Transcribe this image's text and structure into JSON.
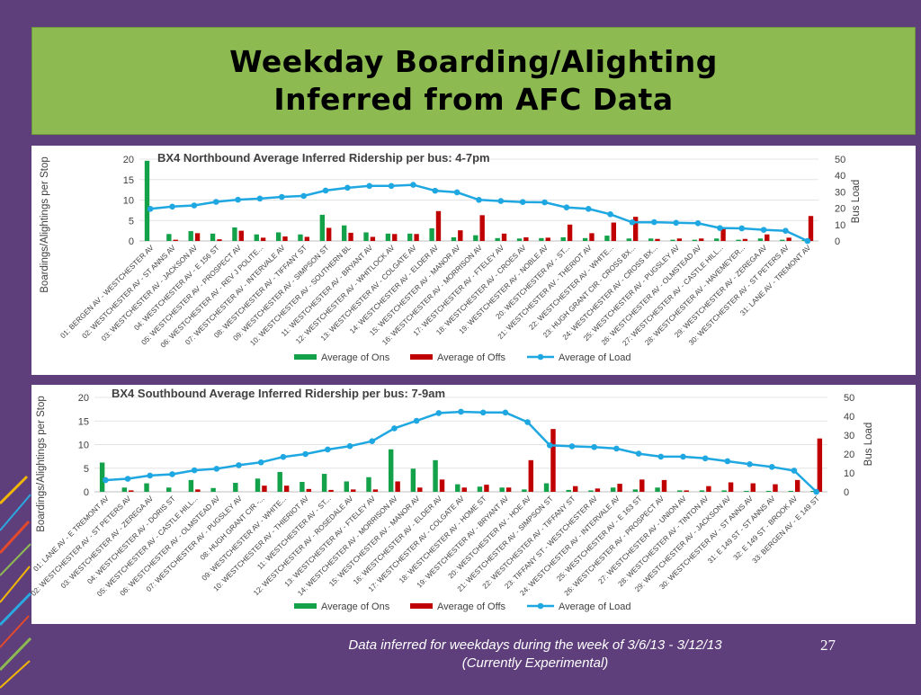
{
  "slide": {
    "title_lines": [
      "Weekday Boarding/Alighting",
      "Inferred from AFC Data"
    ],
    "footer_lines": [
      "Data inferred for weekdays during the week of 3/6/13 - 3/12/13",
      "(Currently Experimental)"
    ],
    "page_number": "27"
  },
  "colors": {
    "ons": "#13a14a",
    "offs": "#c00000",
    "load": "#1ea7e1",
    "background": "#5e3f7c",
    "title_box": "#8dbb52"
  },
  "chart_data": [
    {
      "type": "bar",
      "title": "BX4 Northbound Average Inferred Ridership per bus: 4-7pm",
      "ylabel": "Boardings/Alightings per Stop",
      "y2label": "Bus Load",
      "ylim": [
        0,
        20
      ],
      "y2lim": [
        0,
        50
      ],
      "yticks": [
        0,
        5,
        10,
        15,
        20
      ],
      "y2ticks": [
        0,
        10,
        20,
        30,
        40,
        50
      ],
      "legend": "bottom",
      "categories": [
        "01: BERGEN AV - WESTCHESTER AV",
        "02: WESTCHESTER AV - ST ANNS AV",
        "03: WESTCHESTER AV - JACKSON AV",
        "04: WESTCHESTER AV - E 156 ST",
        "05: WESTCHESTER AV - PROSPECT AV",
        "06: WESTCHESTER AV - REV J POLITE...",
        "07: WESTCHESTER AV - INTERVALE AV",
        "08: WESTCHESTER AV - TIFFANY ST",
        "09: WESTCHESTER AV - SIMPSON ST",
        "10: WESTCHESTER AV - SOUTHERN BL",
        "11: WESTCHESTER AV - BRYANT AV",
        "12: WESTCHESTER AV - WHITLOCK AV",
        "13: WESTCHESTER AV - COLGATE AV",
        "14: WESTCHESTER AV - ELDER AV",
        "15: WESTCHESTER AV - MANOR AV",
        "16: WESTCHESTER AV - MORRISON AV",
        "17: WESTCHESTER AV - FTELEY AV",
        "18: WESTCHESTER AV - CROES AV",
        "19: WESTCHESTER AV - NOBLE AV",
        "20: WESTCHESTER AV - ST...",
        "21: WESTCHESTER AV - THERIOT AV",
        "22: WESTCHESTER AV - WHITE...",
        "23: HUGH GRANT CIR - CROSS BX...",
        "24: WESTCHESTER AV - CROSS BX...",
        "25: WESTCHESTER AV - PUGSLEY AV",
        "26: WESTCHESTER AV - OLMSTEAD AV",
        "27: WESTCHESTER AV - CASTLE HILL...",
        "28: WESTCHESTER AV - HAVEMEYER...",
        "29: WESTCHESTER AV - ZEREGA AV",
        "30: WESTCHESTER AV - ST PETERS AV",
        "31: LANE AV - TREMONT AV"
      ],
      "series": [
        {
          "name": "Average of Ons",
          "kind": "bar",
          "axis": "left",
          "values": [
            19.6,
            1.7,
            2.4,
            1.8,
            3.3,
            1.6,
            2.1,
            1.6,
            6.4,
            3.8,
            2.1,
            1.8,
            1.8,
            3.1,
            0.9,
            1.4,
            0.7,
            0.6,
            0.7,
            0.9,
            0.7,
            1.3,
            0.6,
            0.6,
            0.3,
            0.3,
            0.6,
            0.3,
            0.6,
            0.3,
            0.2
          ]
        },
        {
          "name": "Average of Offs",
          "kind": "bar",
          "axis": "left",
          "values": [
            0,
            0.3,
            1.9,
            0.4,
            2.5,
            0.8,
            1.1,
            1.0,
            3.2,
            2.0,
            1.0,
            1.7,
            1.7,
            7.3,
            2.6,
            6.3,
            1.8,
            0.9,
            0.8,
            4.0,
            1.9,
            4.5,
            5.9,
            0.5,
            0.6,
            0.6,
            3.3,
            0.5,
            1.6,
            0.8,
            6.1
          ]
        },
        {
          "name": "Average of Load",
          "kind": "line",
          "axis": "right",
          "values": [
            19.6,
            21,
            21.7,
            23.9,
            25.2,
            25.9,
            26.9,
            27.5,
            30.8,
            32.5,
            33.6,
            33.6,
            34.3,
            30.7,
            29.7,
            25.1,
            24.4,
            23.8,
            23.6,
            20.5,
            19.6,
            16.3,
            11.4,
            11.5,
            11.1,
            10.8,
            7.9,
            7.7,
            6.8,
            6.2,
            0
          ]
        }
      ]
    },
    {
      "type": "bar",
      "title": "BX4 Southbound Average Inferred Ridership per bus: 7-9am",
      "ylabel": "Boardings/Alightings per Stop",
      "y2label": "Bus Load",
      "ylim": [
        0,
        20
      ],
      "y2lim": [
        0,
        50
      ],
      "yticks": [
        0,
        5,
        10,
        15,
        20
      ],
      "y2ticks": [
        0,
        10,
        20,
        30,
        40,
        50
      ],
      "legend": "bottom",
      "categories": [
        "01: LANE AV - E TREMONT AV",
        "02: WESTCHESTER AV - ST PETERS AV",
        "03: WESTCHESTER AV - ZEREGA AV",
        "04: WESTCHESTER AV - DORIS ST",
        "05: WESTCHESTER AV - CASTLE HILL...",
        "06: WESTCHESTER AV - OLMSTEAD AV",
        "07: WESTCHESTER AV - PUGSLEY AV",
        "08: HUGH GRANT CIR -...",
        "09: WESTCHESTER AV - WHITE...",
        "10: WESTCHESTER AV - THIERIOT AV",
        "11: WESTCHESTER AV - ST...",
        "12: WESTCHESTER AV - ROSEDALE AV",
        "13: WESTCHESTER AV - FTELEY AV",
        "14: WESTCHESTER AV - MORRISON AV",
        "15: WESTCHESTER AV - MANOR AV",
        "16: WESTCHESTER AV - ELDER AV",
        "17: WESTCHESTER AV - COLGATE AV",
        "18: WESTCHESTER AV - HOME ST",
        "19: WESTCHESTER AV - BRYANT AV",
        "20: WESTCHESTER AV - HOE AV",
        "21: WESTCHESTER AV - SIMPSON ST",
        "22: WESTCHESTER AV - TIFFANY ST",
        "23: TIFFANY ST - WESTCHESTER AV",
        "24: WESTCHESTER AV - INTERVALE AV",
        "25: WESTCHESTER AV - E 163 ST",
        "26: WESTCHESTER AV - PROSPECT AV",
        "27: WESTCHESTER AV - UNION AV",
        "28: WESTCHESTER AV - TINTON AV",
        "29: WESTCHESTER AV - JACKSON AV",
        "30: WESTCHESTER AV - ST ANNS AV",
        "31: E 149 ST - ST ANNS AV",
        "32: E 149 ST - BROOK AV",
        "33: BERGEN AV - E 149 ST"
      ],
      "series": [
        {
          "name": "Average of Ons",
          "kind": "bar",
          "axis": "left",
          "values": [
            6.2,
            0.9,
            1.8,
            0.9,
            2.5,
            0.8,
            1.9,
            2.8,
            4.2,
            2.1,
            3.8,
            2.2,
            3.1,
            9.0,
            4.9,
            6.7,
            1.6,
            1.1,
            0.9,
            0.5,
            1.8,
            0.4,
            0.3,
            0.9,
            0.5,
            0.9,
            0.3,
            0.3,
            0.3,
            0.2,
            0.2,
            0.2,
            0.2
          ]
        },
        {
          "name": "Average of Offs",
          "kind": "bar",
          "axis": "left",
          "values": [
            0,
            0.3,
            0,
            0,
            0.5,
            0,
            0,
            1.3,
            1.3,
            0.6,
            0.4,
            0.5,
            0.5,
            2.2,
            0.9,
            2.6,
            0.9,
            1.5,
            0.9,
            6.7,
            13.3,
            1.2,
            0.7,
            1.7,
            2.6,
            2.5,
            0.3,
            1.2,
            2.0,
            1.8,
            1.6,
            2.5,
            11.3
          ]
        },
        {
          "name": "Average of Load",
          "kind": "line",
          "axis": "right",
          "values": [
            6.2,
            6.9,
            8.6,
            9.3,
            11.4,
            12.2,
            14.1,
            15.6,
            18.5,
            20,
            22.4,
            24.2,
            26.8,
            33.6,
            37.6,
            41.7,
            42.4,
            42,
            42,
            36.9,
            24.6,
            24.1,
            23.7,
            22.9,
            20.2,
            18.6,
            18.6,
            17.7,
            16.2,
            14.6,
            13.2,
            11.2,
            0
          ]
        }
      ]
    }
  ]
}
